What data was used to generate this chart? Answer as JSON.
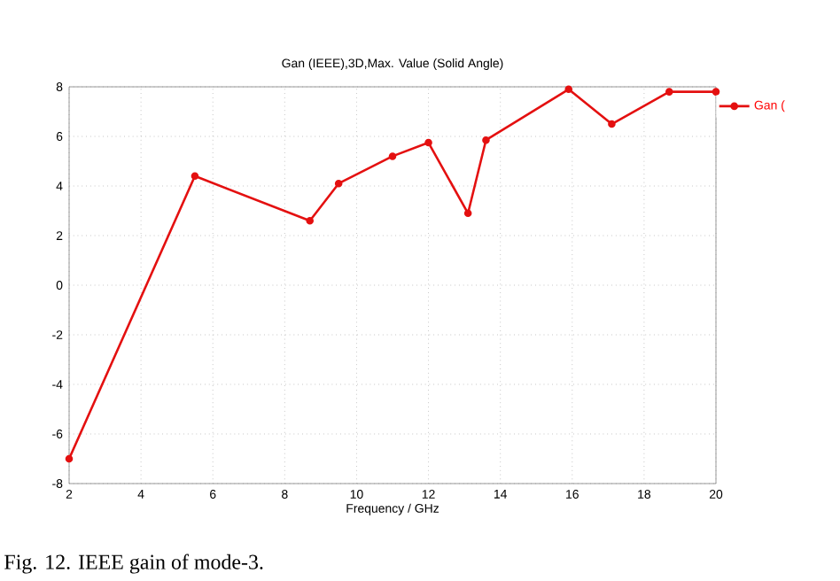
{
  "chart_data": {
    "type": "line",
    "title": "Gan (IEEE),3D,Max. Value (Solid Angle)",
    "xlabel": "Frequency / GHz",
    "annotations": [
      "Fig. 12.  IEEE gain of mode-3."
    ],
    "series": [
      {
        "name": "Gan (",
        "color": "#e41010",
        "x": [
          2,
          5.5,
          8.7,
          9.5,
          11.0,
          12.0,
          13.1,
          13.6,
          15.9,
          17.1,
          18.7,
          20
        ],
        "values": [
          -7,
          4.4,
          2.6,
          4.1,
          5.2,
          5.75,
          2.9,
          5.85,
          7.9,
          6.5,
          7.8,
          7.8
        ]
      }
    ],
    "xlim": [
      2,
      20
    ],
    "ylim": [
      -8,
      8
    ],
    "xticks": [
      2,
      4,
      6,
      8,
      10,
      12,
      14,
      16,
      18,
      20
    ],
    "yticks": [
      -8,
      -6,
      -4,
      -2,
      0,
      2,
      4,
      6,
      8
    ],
    "grid": true,
    "legend": "top right",
    "marker": "circle",
    "line_style": "solid"
  }
}
